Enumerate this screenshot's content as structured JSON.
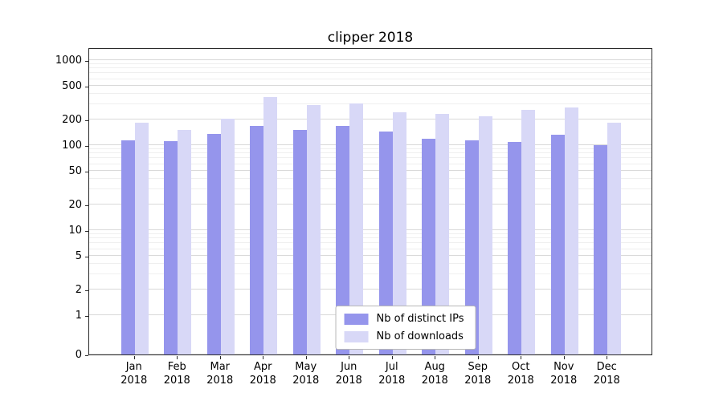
{
  "figure": {
    "background": "#ffffff"
  },
  "chart_data": {
    "type": "bar",
    "title": "clipper 2018",
    "year": "2018",
    "categories": [
      "Jan",
      "Feb",
      "Mar",
      "Apr",
      "May",
      "Jun",
      "Jul",
      "Aug",
      "Sep",
      "Oct",
      "Nov",
      "Dec"
    ],
    "series": [
      {
        "name": "Nb of distinct IPs",
        "color": "#9595ec",
        "values": [
          115,
          112,
          135,
          170,
          152,
          170,
          145,
          120,
          113,
          108,
          132,
          101
        ]
      },
      {
        "name": "Nb of downloads",
        "color": "#d8d8f7",
        "values": [
          185,
          150,
          205,
          365,
          295,
          310,
          245,
          235,
          218,
          260,
          275,
          185
        ]
      }
    ],
    "yscale": "symlog",
    "yticks": [
      0,
      1,
      2,
      5,
      10,
      20,
      50,
      100,
      200,
      500,
      1000
    ],
    "ylim": [
      0,
      1400
    ],
    "grid": true,
    "legend_position": "lower center"
  }
}
